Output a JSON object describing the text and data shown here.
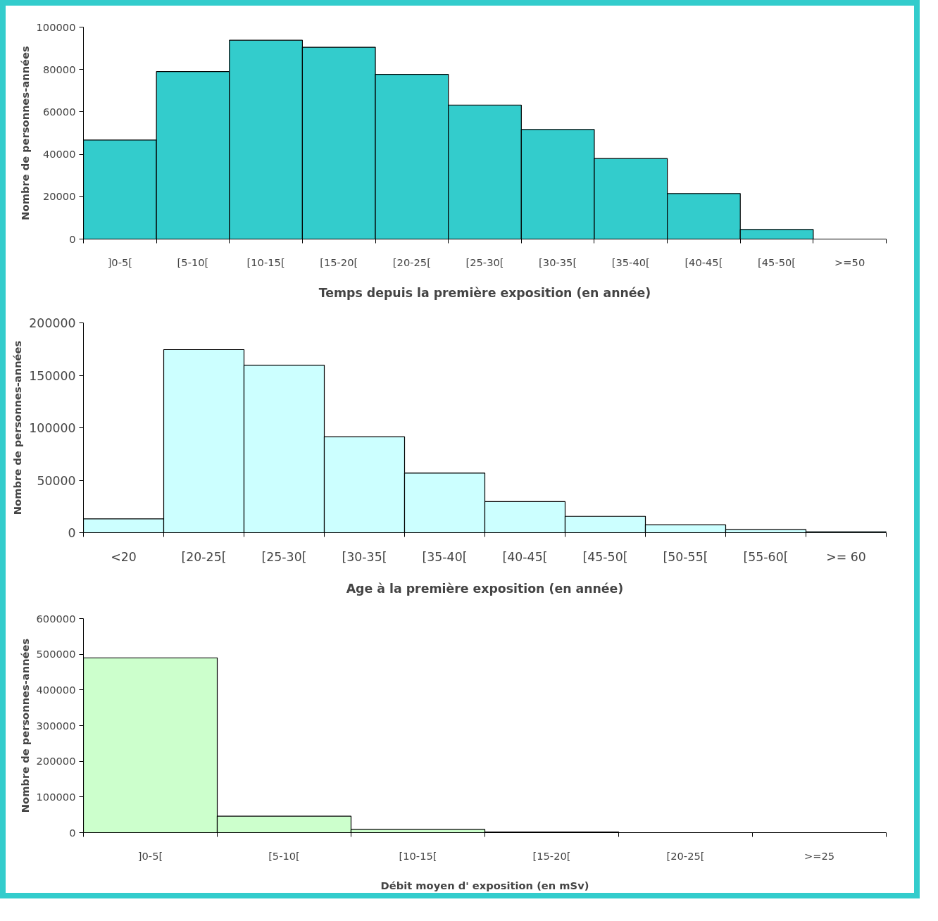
{
  "chart_data": [
    {
      "type": "bar",
      "categories": [
        "]0-5[",
        "[5-10[",
        "[10-15[",
        "[15-20[",
        "[20-25[",
        "[25-30[",
        "[30-35[",
        "[35-40[",
        "[40-45[",
        "[45-50[",
        ">=50"
      ],
      "values": [
        46700,
        79000,
        93800,
        90500,
        77700,
        63200,
        51700,
        38000,
        21500,
        4500,
        0
      ],
      "color": "#33cccc",
      "ylim": [
        0,
        100000
      ],
      "yticks": [
        0,
        20000,
        40000,
        60000,
        80000,
        100000
      ],
      "xlabel": "Temps depuis la première exposition (en année)",
      "ylabel": "Nombre de personnes-années",
      "grid": false
    },
    {
      "type": "bar",
      "categories": [
        "<20",
        "[20-25[",
        "[25-30[",
        "[30-35[",
        "[35-40[",
        "[40-45[",
        "[45-50[",
        "[50-55[",
        "[55-60[",
        ">= 60"
      ],
      "values": [
        13200,
        174500,
        159700,
        91400,
        56800,
        29600,
        15600,
        7400,
        3000,
        1000
      ],
      "color": "#ccffff",
      "ylim": [
        0,
        200000
      ],
      "yticks": [
        0,
        50000,
        100000,
        150000,
        200000
      ],
      "xlabel": "Age à la première exposition (en année)",
      "ylabel": "Nombre de personnes-années",
      "grid": false
    },
    {
      "type": "bar",
      "categories": [
        "]0-5[",
        "[5-10[",
        "[10-15[",
        "[15-20[",
        "[20-25[",
        ">=25"
      ],
      "values": [
        490000,
        46000,
        9000,
        2000,
        0,
        0
      ],
      "color": "#ccffcc",
      "ylim": [
        0,
        600000
      ],
      "yticks": [
        0,
        100000,
        200000,
        300000,
        400000,
        500000,
        600000
      ],
      "xlabel": "Débit moyen d' exposition (en mSv)",
      "ylabel": "Nombre de personnes-années",
      "grid": false
    }
  ]
}
